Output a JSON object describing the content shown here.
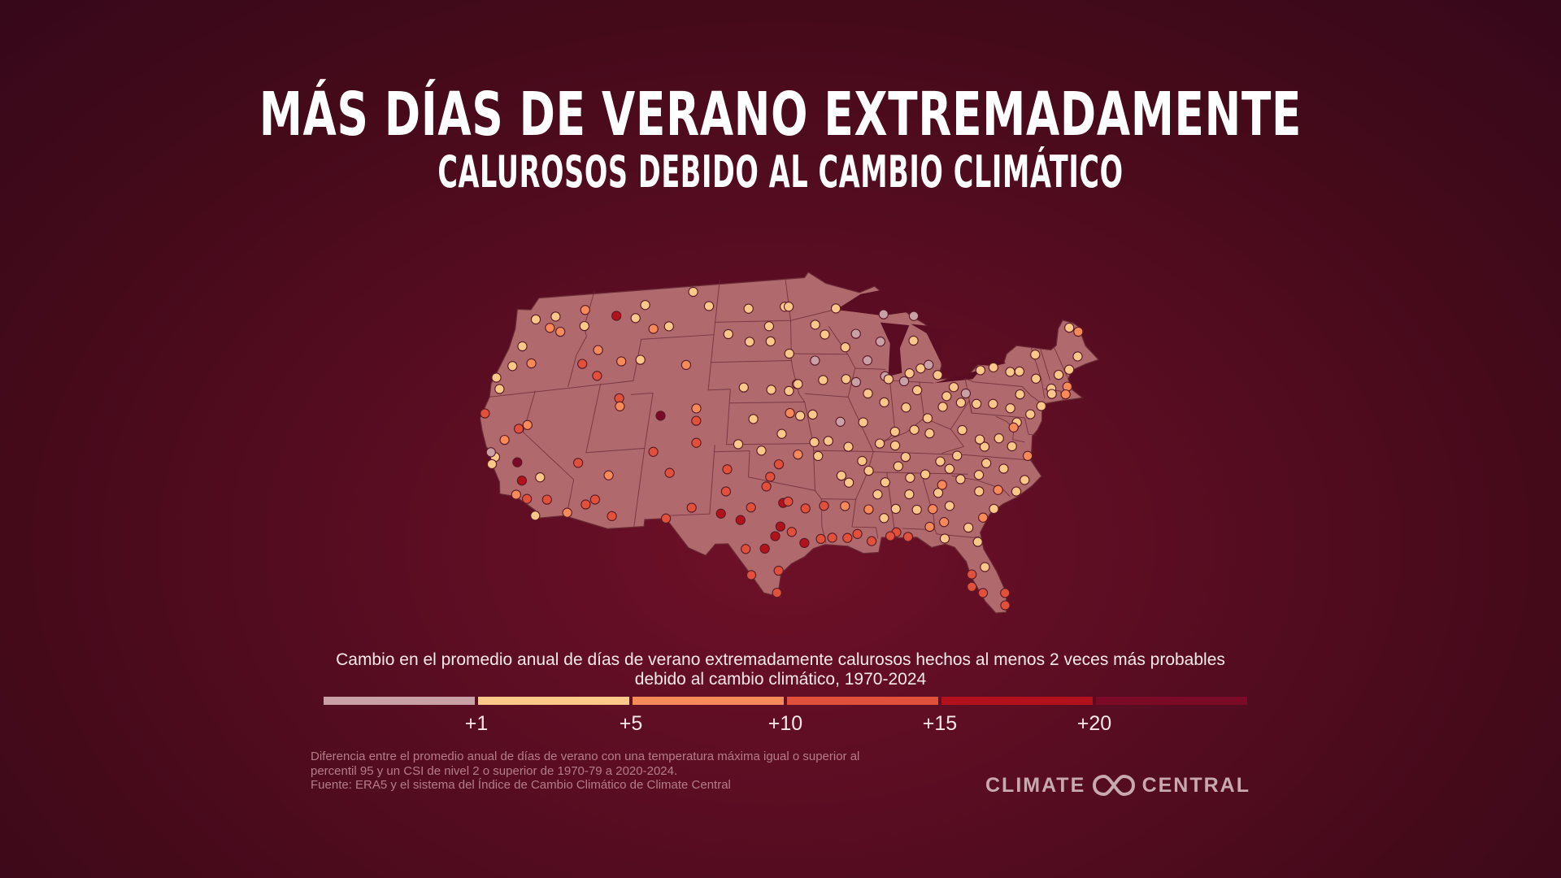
{
  "title": {
    "line1": "MÁS DÍAS DE VERANO EXTREMADAMENTE",
    "line2": "CALUROSOS DEBIDO AL CAMBIO CLIMÁTICO"
  },
  "legend": {
    "title": "Cambio en el promedio anual de días de verano extremadamente calurosos hechos al menos 2 veces más probables debido al cambio climático, 1970-2024",
    "ticks": [
      "+1",
      "+5",
      "+10",
      "+15",
      "+20"
    ],
    "colors": [
      "#c9a0a6",
      "#fcc88a",
      "#f68a58",
      "#e0503a",
      "#b3111c",
      "#7a0a25"
    ]
  },
  "footnote": {
    "line1": "Diferencia entre el promedio anual de días de verano con una temperatura máxima igual o superior al",
    "line2": "percentil 95 y un CSI de nivel 2 o superior de 1970-79 a 2020-2024.",
    "line3": "Fuente: ERA5 y el sistema del Índice de Cambio Climático de Climate Central"
  },
  "logo": {
    "left": "CLIMATE",
    "right": "CENTRAL",
    "icon": "climate-central-infinity-icon"
  },
  "map": {
    "region": "contiguous-united-states",
    "land_color": "#b06a6e",
    "border_color": "#6b2a35",
    "stations": [
      [
        -124.1,
        40.8,
        4
      ],
      [
        -123.0,
        44.1,
        2
      ],
      [
        -122.7,
        45.5,
        2
      ],
      [
        -122.3,
        47.4,
        2
      ],
      [
        -123.5,
        42.5,
        2
      ],
      [
        -124.2,
        43.4,
        2
      ],
      [
        -120.5,
        46.6,
        3
      ],
      [
        -117.4,
        47.6,
        3
      ],
      [
        -119.3,
        46.2,
        3
      ],
      [
        -121.2,
        44.1,
        3
      ],
      [
        -120.3,
        47.4,
        2
      ],
      [
        -117.0,
        46.4,
        2
      ],
      [
        -114.0,
        46.9,
        5
      ],
      [
        -112.0,
        46.6,
        2
      ],
      [
        -111.3,
        47.5,
        2
      ],
      [
        -110.0,
        45.7,
        3
      ],
      [
        -108.5,
        45.8,
        2
      ],
      [
        -104.8,
        47.1,
        2
      ],
      [
        -106.6,
        48.2,
        2
      ],
      [
        -100.8,
        46.8,
        2
      ],
      [
        -98.7,
        45.5,
        2
      ],
      [
        -97.2,
        46.9,
        2
      ],
      [
        -116.2,
        43.6,
        4
      ],
      [
        -115.0,
        44.5,
        3
      ],
      [
        -112.5,
        43.5,
        3
      ],
      [
        -114.5,
        42.6,
        4
      ],
      [
        -110.7,
        43.5,
        2
      ],
      [
        -106.3,
        42.9,
        3
      ],
      [
        -100.5,
        44.4,
        2
      ],
      [
        -98.5,
        44.4,
        2
      ],
      [
        -96.7,
        43.5,
        2
      ],
      [
        -102.6,
        45.0,
        2
      ],
      [
        -121.9,
        37.4,
        2
      ],
      [
        -122.4,
        37.8,
        1
      ],
      [
        -122.0,
        36.9,
        2
      ],
      [
        -121.5,
        38.6,
        3
      ],
      [
        -120.5,
        39.3,
        4
      ],
      [
        -119.8,
        36.8,
        6
      ],
      [
        -119.2,
        34.4,
        3
      ],
      [
        -118.2,
        34.0,
        4
      ],
      [
        -117.2,
        32.7,
        2
      ],
      [
        -116.5,
        33.8,
        4
      ],
      [
        -119.0,
        35.4,
        5
      ],
      [
        -119.8,
        39.5,
        3
      ],
      [
        -117.5,
        35.5,
        2
      ],
      [
        -112.0,
        40.8,
        4
      ],
      [
        -111.8,
        40.2,
        3
      ],
      [
        -108.0,
        39.3,
        6
      ],
      [
        -104.9,
        39.7,
        3
      ],
      [
        -104.8,
        38.8,
        4
      ],
      [
        -104.6,
        37.2,
        4
      ],
      [
        -114.5,
        36.3,
        4
      ],
      [
        -112.5,
        33.5,
        4
      ],
      [
        -110.9,
        32.2,
        4
      ],
      [
        -111.7,
        35.2,
        3
      ],
      [
        -114.6,
        32.7,
        3
      ],
      [
        -113.2,
        33.2,
        4
      ],
      [
        -108.2,
        36.7,
        4
      ],
      [
        -106.6,
        35.1,
        4
      ],
      [
        -106.5,
        31.8,
        4
      ],
      [
        -104.5,
        32.5,
        4
      ],
      [
        -101.8,
        35.2,
        4
      ],
      [
        -101.8,
        33.6,
        4
      ],
      [
        -102.1,
        32.0,
        5
      ],
      [
        -100.5,
        31.5,
        5
      ],
      [
        -98.5,
        29.4,
        5
      ],
      [
        -97.7,
        30.3,
        5
      ],
      [
        -97.1,
        32.7,
        5
      ],
      [
        -96.7,
        32.8,
        4
      ],
      [
        -95.4,
        29.8,
        5
      ],
      [
        -94.1,
        30.1,
        4
      ],
      [
        -97.4,
        27.8,
        4
      ],
      [
        -97.5,
        26.2,
        4
      ],
      [
        -99.5,
        27.5,
        4
      ],
      [
        -96.4,
        30.6,
        4
      ],
      [
        -95.3,
        32.3,
        4
      ],
      [
        -98.5,
        33.9,
        4
      ],
      [
        -100.0,
        29.4,
        4
      ],
      [
        -97.3,
        31.0,
        5
      ],
      [
        -99.7,
        32.4,
        4
      ],
      [
        -97.5,
        35.5,
        4
      ],
      [
        -95.9,
        36.2,
        3
      ],
      [
        -99.0,
        36.5,
        2
      ],
      [
        -98.2,
        34.6,
        4
      ],
      [
        -97.3,
        37.7,
        2
      ],
      [
        -95.7,
        39.0,
        2
      ],
      [
        -96.6,
        39.2,
        3
      ],
      [
        -94.6,
        39.1,
        2
      ],
      [
        -96.0,
        41.3,
        2
      ],
      [
        -98.3,
        40.9,
        2
      ],
      [
        -100.8,
        41.1,
        2
      ],
      [
        -96.7,
        40.8,
        2
      ],
      [
        -99.8,
        38.8,
        2
      ],
      [
        -101.0,
        37.0,
        2
      ],
      [
        -93.3,
        44.9,
        2
      ],
      [
        -92.1,
        46.8,
        2
      ],
      [
        -94.2,
        45.6,
        2
      ],
      [
        -96.8,
        46.9,
        2
      ],
      [
        -93.6,
        41.6,
        2
      ],
      [
        -91.5,
        41.7,
        2
      ],
      [
        -90.6,
        41.5,
        1
      ],
      [
        -94.3,
        43.0,
        1
      ],
      [
        -95.9,
        41.3,
        2
      ],
      [
        -90.2,
        38.6,
        2
      ],
      [
        -93.3,
        37.2,
        2
      ],
      [
        -92.2,
        38.6,
        1
      ],
      [
        -94.5,
        37.1,
        2
      ],
      [
        -89.6,
        40.7,
        2
      ],
      [
        -87.9,
        42.0,
        1
      ],
      [
        -88.0,
        44.5,
        1
      ],
      [
        -89.4,
        43.1,
        1
      ],
      [
        -90.3,
        45.0,
        1
      ],
      [
        -91.4,
        44.0,
        2
      ],
      [
        -88.2,
        40.1,
        2
      ],
      [
        -87.6,
        41.8,
        2
      ],
      [
        -86.2,
        41.7,
        1
      ],
      [
        -85.6,
        42.3,
        2
      ],
      [
        -84.5,
        42.7,
        2
      ],
      [
        -83.0,
        42.3,
        2
      ],
      [
        -83.7,
        43.0,
        1
      ],
      [
        -84.8,
        44.7,
        2
      ],
      [
        -87.4,
        46.5,
        1
      ],
      [
        -84.4,
        46.5,
        1
      ],
      [
        -86.3,
        39.8,
        2
      ],
      [
        -87.5,
        38.0,
        2
      ],
      [
        -85.1,
        41.1,
        2
      ],
      [
        -84.5,
        39.1,
        2
      ],
      [
        -83.0,
        40.0,
        2
      ],
      [
        -81.7,
        41.5,
        2
      ],
      [
        -80.7,
        41.1,
        1
      ],
      [
        -82.5,
        40.8,
        2
      ],
      [
        -81.3,
        40.4,
        2
      ],
      [
        -79.9,
        40.4,
        2
      ],
      [
        -78.4,
        40.5,
        2
      ],
      [
        -76.9,
        40.3,
        2
      ],
      [
        -75.7,
        41.4,
        2
      ],
      [
        -75.2,
        40.0,
        2
      ],
      [
        -77.6,
        43.2,
        2
      ],
      [
        -76.1,
        43.0,
        2
      ],
      [
        -78.9,
        42.9,
        2
      ],
      [
        -73.8,
        42.7,
        2
      ],
      [
        -75.2,
        43.1,
        2
      ],
      [
        -74.0,
        40.7,
        2
      ],
      [
        -73.2,
        44.5,
        2
      ],
      [
        -71.5,
        43.2,
        2
      ],
      [
        -72.6,
        42.1,
        2
      ],
      [
        -71.0,
        42.4,
        3
      ],
      [
        -70.3,
        43.7,
        2
      ],
      [
        -69.0,
        44.8,
        2
      ],
      [
        -68.8,
        46.9,
        2
      ],
      [
        -68.0,
        46.7,
        3
      ],
      [
        -71.4,
        41.8,
        3
      ],
      [
        -72.7,
        41.7,
        2
      ],
      [
        -76.6,
        39.3,
        2
      ],
      [
        -77.0,
        38.9,
        3
      ],
      [
        -77.5,
        37.5,
        2
      ],
      [
        -76.3,
        36.9,
        3
      ],
      [
        -79.9,
        37.3,
        2
      ],
      [
        -78.5,
        38.0,
        2
      ],
      [
        -80.0,
        36.1,
        2
      ],
      [
        -78.6,
        35.8,
        2
      ],
      [
        -80.8,
        35.2,
        2
      ],
      [
        -77.9,
        34.2,
        2
      ],
      [
        -77.0,
        35.1,
        2
      ],
      [
        -79.4,
        34.2,
        3
      ],
      [
        -81.0,
        34.0,
        2
      ],
      [
        -80.0,
        32.8,
        2
      ],
      [
        -82.4,
        34.8,
        2
      ],
      [
        -81.0,
        32.1,
        3
      ],
      [
        -84.4,
        33.7,
        2
      ],
      [
        -83.6,
        32.8,
        2
      ],
      [
        -82.3,
        31.3,
        2
      ],
      [
        -84.2,
        31.6,
        3
      ],
      [
        -81.7,
        30.3,
        2
      ],
      [
        -81.4,
        28.5,
        2
      ],
      [
        -82.5,
        27.9,
        4
      ],
      [
        -82.6,
        27.0,
        4
      ],
      [
        -81.8,
        26.6,
        4
      ],
      [
        -80.2,
        25.8,
        4
      ],
      [
        -80.1,
        26.7,
        4
      ],
      [
        -84.3,
        30.4,
        2
      ],
      [
        -86.8,
        33.5,
        2
      ],
      [
        -86.3,
        32.4,
        2
      ],
      [
        -85.4,
        31.2,
        3
      ],
      [
        -88.1,
        30.7,
        4
      ],
      [
        -87.2,
        30.4,
        4
      ],
      [
        -86.6,
        34.7,
        2
      ],
      [
        -90.2,
        32.3,
        3
      ],
      [
        -88.6,
        30.4,
        4
      ],
      [
        -89.0,
        31.7,
        2
      ],
      [
        -88.7,
        34.3,
        2
      ],
      [
        -90.1,
        30.0,
        4
      ],
      [
        -91.2,
        30.5,
        4
      ],
      [
        -92.0,
        30.2,
        4
      ],
      [
        -93.2,
        30.2,
        4
      ],
      [
        -93.8,
        32.5,
        4
      ],
      [
        -92.1,
        32.5,
        3
      ],
      [
        -92.3,
        34.7,
        2
      ],
      [
        -94.2,
        36.1,
        2
      ],
      [
        -91.7,
        34.2,
        2
      ],
      [
        -90.5,
        35.8,
        2
      ],
      [
        -90.0,
        35.1,
        2
      ],
      [
        -86.8,
        36.2,
        2
      ],
      [
        -85.3,
        35.0,
        2
      ],
      [
        -83.9,
        36.0,
        2
      ],
      [
        -82.4,
        36.5,
        2
      ],
      [
        -85.8,
        38.2,
        2
      ],
      [
        -84.5,
        38.0,
        2
      ],
      [
        -87.6,
        37.0,
        2
      ],
      [
        -88.9,
        37.1,
        2
      ],
      [
        -81.6,
        38.4,
        2
      ],
      [
        -80.2,
        37.8,
        2
      ],
      [
        -91.6,
        36.8,
        2
      ],
      [
        -88.0,
        32.4,
        2
      ],
      [
        -83.2,
        35.5,
        2
      ],
      [
        -84.0,
        34.3,
        3
      ],
      [
        -85.0,
        32.5,
        3
      ],
      [
        -89.4,
        33.4,
        2
      ],
      [
        -87.5,
        35.5,
        2
      ]
    ]
  }
}
